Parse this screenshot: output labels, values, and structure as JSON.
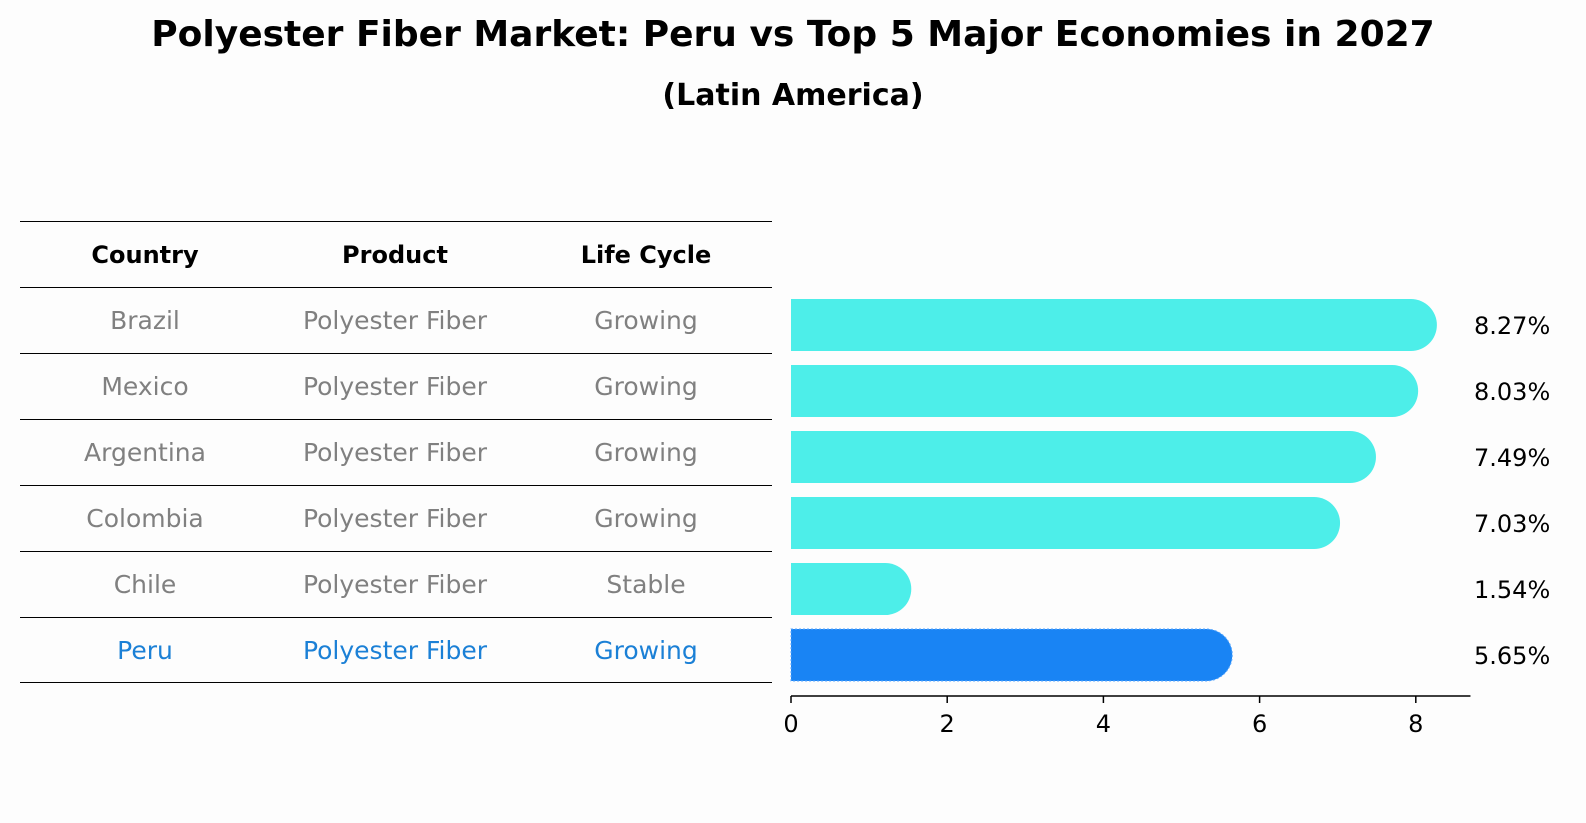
{
  "title": "Polyester Fiber Market: Peru vs Top 5 Major Economies in 2027",
  "subtitle": "(Latin America)",
  "table": {
    "headers": [
      "Country",
      "Product",
      "Life Cycle"
    ],
    "rows": [
      [
        "Brazil",
        "Polyester Fiber",
        "Growing"
      ],
      [
        "Mexico",
        "Polyester Fiber",
        "Growing"
      ],
      [
        "Argentina",
        "Polyester Fiber",
        "Growing"
      ],
      [
        "Colombia",
        "Polyester Fiber",
        "Growing"
      ],
      [
        "Chile",
        "Polyester Fiber",
        "Stable"
      ],
      [
        "Peru",
        "Polyester Fiber",
        "Growing"
      ]
    ],
    "highlight_row": "Peru"
  },
  "colors": {
    "bar": "#4deee9",
    "highlight_bar": "#1984f4",
    "muted_text": "#808080",
    "highlight_text": "#1b80d6"
  },
  "chart_data": {
    "type": "bar",
    "orientation": "horizontal",
    "categories": [
      "Brazil",
      "Mexico",
      "Argentina",
      "Colombia",
      "Chile",
      "Peru"
    ],
    "values": [
      8.27,
      8.03,
      7.49,
      7.03,
      1.54,
      5.65
    ],
    "value_labels": [
      "8.27%",
      "8.03%",
      "7.49%",
      "7.03%",
      "1.54%",
      "5.65%"
    ],
    "highlight": "Peru",
    "xlim": [
      0,
      8.7
    ],
    "xticks": [
      0,
      2,
      4,
      6,
      8
    ],
    "xlabel": "",
    "ylabel": ""
  }
}
